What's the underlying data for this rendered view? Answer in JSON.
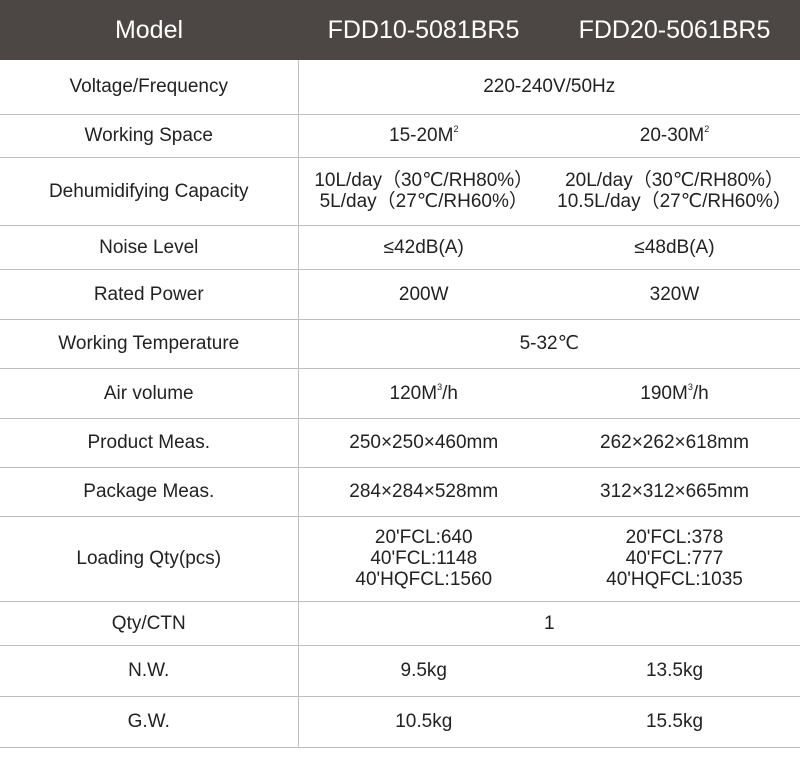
{
  "header": {
    "model": "Model",
    "model_a": "FDD10-5081BR5",
    "model_b": "FDD20-5061BR5"
  },
  "rows": {
    "voltage": {
      "label": "Voltage/Frequency",
      "value": "220-240V/50Hz"
    },
    "space": {
      "label": "Working Space",
      "a": "15-20M",
      "a_sup": "2",
      "b": "20-30M",
      "b_sup": "2"
    },
    "capacity": {
      "label": "Dehumidifying Capacity",
      "a1": "10L/day（30℃/RH80%）",
      "a2": "5L/day（27℃/RH60%）",
      "b1": "20L/day（30℃/RH80%）",
      "b2": "10.5L/day（27℃/RH60%）"
    },
    "noise": {
      "label": "Noise Level",
      "a": "≤42dB(A)",
      "b": "≤48dB(A)"
    },
    "power": {
      "label": "Rated Power",
      "a": "200W",
      "b": "320W"
    },
    "temperature": {
      "label": "Working Temperature",
      "value": "5-32℃"
    },
    "air": {
      "label": "Air volume",
      "a": "120M",
      "a_sup": "3",
      "a_unit": "/h",
      "b": "190M",
      "b_sup": "3",
      "b_unit": "/h"
    },
    "product": {
      "label": "Product Meas.",
      "a": "250×250×460mm",
      "b": "262×262×618mm"
    },
    "package": {
      "label": "Package Meas.",
      "a": "284×284×528mm",
      "b": "312×312×665mm"
    },
    "loading": {
      "label": "Loading Qty(pcs)",
      "a1": "20'FCL:640",
      "a2": "40'FCL:1148",
      "a3": "40'HQFCL:1560",
      "b1": "20'FCL:378",
      "b2": "40'FCL:777",
      "b3": "40'HQFCL:1035"
    },
    "qty": {
      "label": "Qty/CTN",
      "value": "1"
    },
    "nw": {
      "label": "N.W.",
      "a": "9.5kg",
      "b": "13.5kg"
    },
    "gw": {
      "label": "G.W.",
      "a": "10.5kg",
      "b": "15.5kg"
    }
  }
}
